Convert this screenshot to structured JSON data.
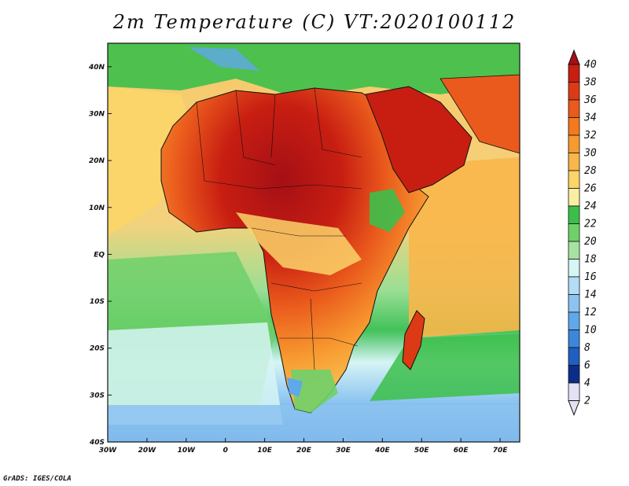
{
  "title": "2m Temperature (C) VT:2020100112",
  "footer": "GrADS: IGES/COLA",
  "map": {
    "lon_ticks": [
      "30W",
      "20W",
      "10W",
      "0",
      "10E",
      "20E",
      "30E",
      "40E",
      "50E",
      "60E",
      "70E"
    ],
    "lat_ticks": [
      "40N",
      "30N",
      "20N",
      "10N",
      "EQ",
      "10S",
      "20S",
      "30S",
      "40S"
    ],
    "lon_range": [
      -30,
      75
    ],
    "lat_range": [
      -40,
      45
    ]
  },
  "colorbar": {
    "levels": [
      "40",
      "38",
      "36",
      "34",
      "32",
      "30",
      "28",
      "26",
      "24",
      "22",
      "20",
      "18",
      "16",
      "14",
      "12",
      "10",
      "8",
      "6",
      "4",
      "2"
    ],
    "colors": [
      "#a50f15",
      "#c81e12",
      "#dc3a14",
      "#ea5a1c",
      "#f47a1e",
      "#f79a30",
      "#f9b64a",
      "#fbd46a",
      "#fbeea0",
      "#3cbf4a",
      "#6fd06a",
      "#a6e3a1",
      "#d6f5f5",
      "#b3dcf5",
      "#8cc3f0",
      "#5fa8ea",
      "#3c86dc",
      "#1f5fc0",
      "#0b2d8a",
      "#e6e0f5"
    ]
  }
}
